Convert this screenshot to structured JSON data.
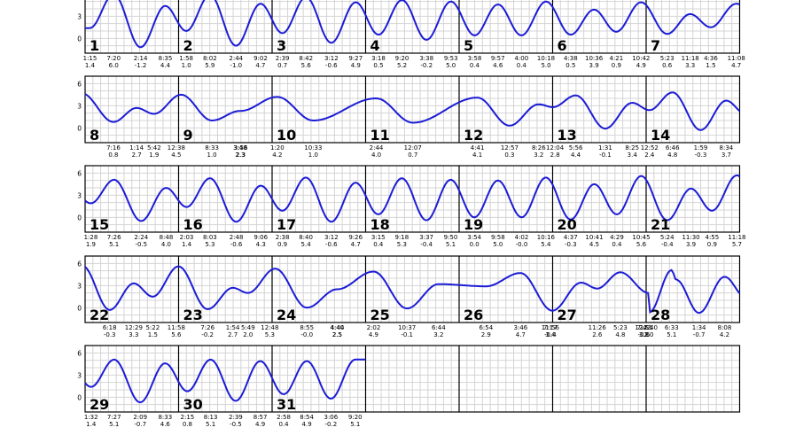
{
  "chart_data": {
    "type": "line",
    "y_ticks": [
      "0",
      "3",
      "6"
    ],
    "ylim": [
      -2,
      7
    ],
    "colors": {
      "curve": "#1c1cd6",
      "grid": "#d4d4d4",
      "frame": "#000000"
    },
    "days": [
      {
        "day": "1",
        "extremes": [
          [
            "1:15",
            "1.4"
          ],
          [
            "7:20",
            "6.0"
          ],
          [
            "2:14",
            "-1.2"
          ],
          [
            "8:35",
            "4.4"
          ]
        ]
      },
      {
        "day": "2",
        "extremes": [
          [
            "1:58",
            "1.0"
          ],
          [
            "8:02",
            "5.9"
          ],
          [
            "2:44",
            "-1.0"
          ],
          [
            "9:02",
            "4.7"
          ]
        ]
      },
      {
        "day": "3",
        "extremes": [
          [
            "2:39",
            "0.7"
          ],
          [
            "8:42",
            "5.6"
          ],
          [
            "3:12",
            "-0.6"
          ],
          [
            "9:27",
            "4.9"
          ]
        ]
      },
      {
        "day": "4",
        "extremes": [
          [
            "3:18",
            "0.5"
          ],
          [
            "9:20",
            "5.2"
          ],
          [
            "3:38",
            "-0.2"
          ],
          [
            "9:53",
            "5.0"
          ]
        ]
      },
      {
        "day": "5",
        "extremes": [
          [
            "3:58",
            "0.4"
          ],
          [
            "9:57",
            "4.6"
          ],
          [
            "4:00",
            "0.4"
          ],
          [
            "10:18",
            "5.0"
          ]
        ]
      },
      {
        "day": "6",
        "extremes": [
          [
            "4:38",
            "0.5"
          ],
          [
            "10:36",
            "3.9"
          ],
          [
            "4:21",
            "0.9"
          ],
          [
            "10:42",
            "4.9"
          ]
        ]
      },
      {
        "day": "7",
        "extremes": [
          [
            "5:23",
            "0.6"
          ],
          [
            "11:18",
            "3.3"
          ],
          [
            "4:36",
            "1.5"
          ],
          [
            "11:08",
            "4.7"
          ]
        ]
      },
      {
        "day": "8",
        "extremes": [
          [
            "7:16",
            "0.8"
          ],
          [
            "1:14",
            "2.7"
          ],
          [
            "5:42",
            "1.9"
          ],
          [
            "12:38",
            "4.5"
          ]
        ]
      },
      {
        "day": "9",
        "extremes": [
          [
            "8:33",
            "1.0"
          ],
          [
            "3:48",
            "2.3"
          ],
          [
            "3:56",
            "2.3"
          ]
        ]
      },
      {
        "day": "10",
        "extremes": [
          [
            "1:20",
            "4.2"
          ],
          [
            "10:33",
            "1.0"
          ]
        ]
      },
      {
        "day": "11",
        "extremes": [
          [
            "2:44",
            "4.0"
          ],
          [
            "12:07",
            "0.7"
          ]
        ]
      },
      {
        "day": "12",
        "extremes": [
          [
            "4:41",
            "4.1"
          ],
          [
            "12:57",
            "0.3"
          ],
          [
            "8:26",
            "3.2"
          ]
        ]
      },
      {
        "day": "13",
        "extremes": [
          [
            "12:04",
            "2.8"
          ],
          [
            "5:56",
            "4.4"
          ],
          [
            "1:31",
            "-0.1"
          ],
          [
            "8:25",
            "3.4"
          ]
        ]
      },
      {
        "day": "14",
        "extremes": [
          [
            "12:52",
            "2.4"
          ],
          [
            "6:46",
            "4.8"
          ],
          [
            "1:59",
            "-0.3"
          ],
          [
            "8:34",
            "3.7"
          ]
        ]
      },
      {
        "day": "15",
        "extremes": [
          [
            "1:28",
            "1.9"
          ],
          [
            "7:26",
            "5.1"
          ],
          [
            "2:24",
            "-0.5"
          ],
          [
            "8:48",
            "4.0"
          ]
        ]
      },
      {
        "day": "16",
        "extremes": [
          [
            "2:03",
            "1.4"
          ],
          [
            "8:03",
            "5.3"
          ],
          [
            "2:48",
            "-0.6"
          ],
          [
            "9:06",
            "4.3"
          ]
        ]
      },
      {
        "day": "17",
        "extremes": [
          [
            "2:38",
            "0.9"
          ],
          [
            "8:40",
            "5.4"
          ],
          [
            "3:12",
            "-0.6"
          ],
          [
            "9:26",
            "4.7"
          ]
        ]
      },
      {
        "day": "18",
        "extremes": [
          [
            "3:15",
            "0.4"
          ],
          [
            "9:18",
            "5.3"
          ],
          [
            "3:37",
            "-0.4"
          ],
          [
            "9:50",
            "5.1"
          ]
        ]
      },
      {
        "day": "19",
        "extremes": [
          [
            "3:54",
            "0.0"
          ],
          [
            "9:58",
            "5.0"
          ],
          [
            "4:02",
            "-0.0"
          ],
          [
            "10:16",
            "5.4"
          ]
        ]
      },
      {
        "day": "20",
        "extremes": [
          [
            "4:37",
            "-0.3"
          ],
          [
            "10:41",
            "4.5"
          ],
          [
            "4:29",
            "0.4"
          ],
          [
            "10:45",
            "5.6"
          ]
        ]
      },
      {
        "day": "21",
        "extremes": [
          [
            "5:24",
            "-0.4"
          ],
          [
            "11:30",
            "3.9"
          ],
          [
            "4:55",
            "0.9"
          ],
          [
            "11:18",
            "5.7"
          ]
        ]
      },
      {
        "day": "22",
        "extremes": [
          [
            "6:18",
            "-0.3"
          ],
          [
            "12:29",
            "3.3"
          ],
          [
            "5:22",
            "1.5"
          ],
          [
            "11:58",
            "5.6"
          ]
        ]
      },
      {
        "day": "23",
        "extremes": [
          [
            "7:26",
            "-0.2"
          ],
          [
            "1:54",
            "2.7"
          ],
          [
            "5:49",
            "2.0"
          ],
          [
            "12:48",
            "5.3"
          ]
        ]
      },
      {
        "day": "24",
        "extremes": [
          [
            "8:55",
            "-0.0"
          ],
          [
            "4:40",
            "2.5"
          ],
          [
            "4:44",
            "2.5"
          ]
        ]
      },
      {
        "day": "25",
        "extremes": [
          [
            "2:02",
            "4.9"
          ],
          [
            "10:37",
            "-0.1"
          ],
          [
            "6:44",
            "3.2"
          ]
        ]
      },
      {
        "day": "26",
        "extremes": [
          [
            "6:54",
            "2.9"
          ],
          [
            "3:46",
            "4.7"
          ],
          [
            "11:56",
            "-0.4"
          ],
          [
            "7:17",
            "3.4"
          ]
        ]
      },
      {
        "day": "27",
        "extremes": [
          [
            "11:26",
            "2.6"
          ],
          [
            "5:23",
            "4.8"
          ],
          [
            "12:51",
            "-0.6"
          ],
          [
            "7:42",
            "3.8"
          ]
        ]
      },
      {
        "day": "28",
        "extremes": [
          [
            "12:40",
            "2.0"
          ],
          [
            "6:33",
            "5.1"
          ],
          [
            "1:34",
            "-0.7"
          ],
          [
            "8:08",
            "4.2"
          ]
        ]
      },
      {
        "day": "29",
        "extremes": [
          [
            "1:32",
            "1.4"
          ],
          [
            "7:27",
            "5.1"
          ],
          [
            "2:09",
            "-0.7"
          ],
          [
            "8:33",
            "4.6"
          ]
        ]
      },
      {
        "day": "30",
        "extremes": [
          [
            "2:15",
            "0.8"
          ],
          [
            "8:13",
            "5.1"
          ],
          [
            "2:39",
            "-0.5"
          ],
          [
            "8:57",
            "4.9"
          ]
        ]
      },
      {
        "day": "31",
        "extremes": [
          [
            "2:58",
            "0.4"
          ],
          [
            "8:54",
            "4.9"
          ],
          [
            "3:06",
            "-0.2"
          ],
          [
            "9:20",
            "5.1"
          ]
        ]
      }
    ]
  }
}
